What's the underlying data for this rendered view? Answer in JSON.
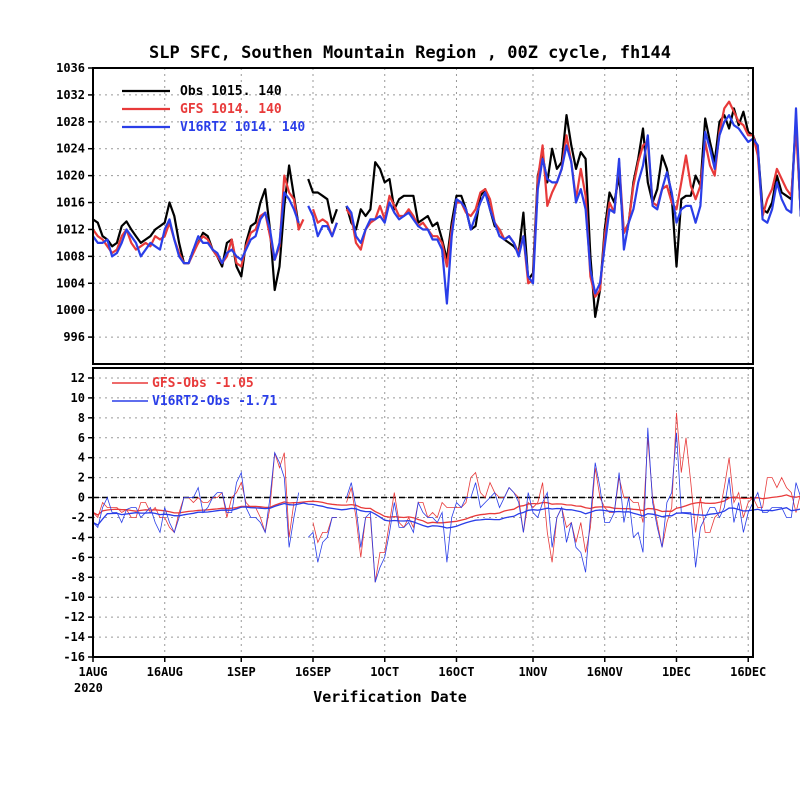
{
  "chart_data": [
    {
      "type": "line",
      "title": "SLP SFC, Southen Mountain Region , 00Z cycle, fh144",
      "xlabel": "Verification Date",
      "x_tick_labels": [
        "1AUG",
        "16AUG",
        "1SEP",
        "16SEP",
        "1OCT",
        "16OCT",
        "1NOV",
        "16NOV",
        "1DEC",
        "16DEC"
      ],
      "x_tick_offsets_days": [
        0,
        15,
        31,
        46,
        61,
        76,
        92,
        107,
        122,
        137
      ],
      "x_year_label": "2020",
      "x_range_days": [
        0,
        138
      ],
      "ylim": [
        992,
        1036
      ],
      "y_ticks": [
        996,
        1000,
        1004,
        1008,
        1012,
        1016,
        1020,
        1024,
        1028,
        1032,
        1036
      ],
      "grid": true,
      "legend_position": "top-left",
      "colors": {
        "obs": "#000000",
        "gfs": "#e83a3a",
        "v16": "#2a3ee8"
      },
      "legend": [
        {
          "name": "Obs",
          "mean": "1015.",
          "count": "140",
          "color": "#000000"
        },
        {
          "name": "GFS",
          "mean": "1014.",
          "count": "140",
          "color": "#e83a3a"
        },
        {
          "name": "V16RT2",
          "mean": "1014.",
          "count": "140",
          "color": "#2a3ee8"
        }
      ],
      "series": [
        {
          "name": "Obs",
          "key": "obs",
          "values": [
            1013.5,
            1013,
            1011,
            1010.5,
            1009.5,
            1010,
            1012.5,
            1013.2,
            1012,
            1011,
            1010,
            1010.5,
            1011,
            1012,
            1012.5,
            1013,
            1016,
            1014,
            1010,
            1007,
            1007,
            1009,
            1010,
            1011.5,
            1011,
            1009,
            1008,
            1006.5,
            1010,
            1010.5,
            1006.5,
            1005,
            1010,
            1012.5,
            1013,
            1016,
            1018,
            1012,
            1003,
            1006.5,
            1015.5,
            1021.5,
            1017,
            1012.5,
            null,
            1019.5,
            1017.5,
            1017.5,
            1017,
            1016.5,
            1013,
            1015,
            null,
            1015.5,
            1013,
            1012,
            1015,
            1014,
            1015,
            1022,
            1021,
            1019,
            1019.5,
            1015,
            1016.5,
            1017,
            1017,
            1017,
            1013,
            1013.5,
            1014,
            1012.5,
            1013,
            1010.5,
            1007.5,
            1013,
            1017,
            1017,
            1015,
            1012,
            1012.5,
            1017,
            1018,
            1015,
            1012.5,
            1012,
            1010.5,
            1010,
            1009.5,
            1008.5,
            1014.5,
            1004.5,
            1005.5,
            1020,
            1023,
            1019,
            1024,
            1021,
            1022,
            1029,
            1024.5,
            1021,
            1023.5,
            1022.5,
            1008,
            999,
            1003,
            1012,
            1017.5,
            1016,
            1020,
            1011.5,
            1013,
            1019,
            1022.5,
            1027,
            1019,
            1016,
            1018,
            1023,
            1021,
            1017,
            1006.5,
            1016.5,
            1017,
            1017,
            1020,
            1018.5,
            1028.5,
            1025,
            1022,
            1028,
            1029,
            1027,
            1030,
            1027.5,
            1029.5,
            1026.5,
            1026,
            1024,
            1015,
            1014.5,
            1016,
            1020,
            1017.5,
            1017,
            1016.5,
            1028.5,
            1014,
            1023,
            1025.5,
            1018,
            1017,
            1027.5
          ]
        },
        {
          "name": "GFS",
          "key": "gfs",
          "values": [
            1012,
            1011,
            1010.5,
            1009.5,
            1008.5,
            1009,
            1011,
            1012,
            1010,
            1009,
            1009.5,
            1010,
            1009.5,
            1011,
            1010.5,
            1011,
            1013,
            1010.5,
            1008.5,
            1007,
            1007,
            1008.5,
            1010,
            1011,
            1010.5,
            1009,
            1008,
            1007,
            1008,
            1010.5,
            1007,
            1006.5,
            1009.5,
            1011.5,
            1012,
            1014,
            1014.5,
            1011,
            1007.5,
            1009.5,
            1020,
            1017.5,
            1016.5,
            1012,
            1013.5,
            null,
            1015,
            1013,
            1013.5,
            1013,
            1011,
            1013,
            null,
            1015,
            1014,
            1010,
            1009,
            1012,
            1013,
            1013.5,
            1015.5,
            1013.5,
            1017,
            1015.5,
            1014,
            1014,
            1015,
            1014,
            1012.5,
            1013,
            1012,
            1011,
            1011,
            1010,
            1006.5,
            1012,
            1016,
            1016,
            1014.5,
            1014,
            1015,
            1017.5,
            1018,
            1016.5,
            1013,
            1012,
            1010.5,
            1011,
            1010,
            1008.5,
            1011,
            1004,
            1004.5,
            1019.5,
            1024.5,
            1015.5,
            1017.5,
            1019,
            1021,
            1026,
            1022,
            1016.5,
            1021,
            1017,
            1005,
            1002,
            1003,
            1011,
            1016,
            1014.5,
            1022,
            1011.5,
            1013,
            1018.5,
            1022,
            1024.5,
            1025,
            1016,
            1015.5,
            1018,
            1018.5,
            1016,
            1015,
            1019,
            1023,
            1018.5,
            1016.5,
            1018.5,
            1025,
            1021.5,
            1020,
            1026.5,
            1030,
            1031,
            1029.5,
            1028,
            1027.5,
            1026,
            1026,
            1023,
            1014,
            1016.5,
            1018,
            1021,
            1019.5,
            1018,
            1017,
            1027,
            1014.5,
            1027,
            1021.5,
            1017.5,
            1017,
            1027.5
          ]
        },
        {
          "name": "V16RT2",
          "key": "v16",
          "values": [
            1011,
            1010,
            1010,
            1010.5,
            1008,
            1008.5,
            1010,
            1012,
            1011,
            1010,
            1008,
            1009,
            1010,
            1009.5,
            1009,
            1012,
            1013.5,
            1010.5,
            1008,
            1007,
            1007,
            1009,
            1011,
            1010,
            1010,
            1009,
            1008.5,
            1007,
            1008.5,
            1009,
            1008,
            1007.5,
            1009,
            1010.5,
            1011,
            1013.5,
            1014.5,
            1012,
            1007.5,
            1010,
            1017.5,
            1016.5,
            1015,
            1013,
            null,
            1015.5,
            1014,
            1011,
            1012.5,
            1012.5,
            1011,
            1013,
            null,
            1015.5,
            1014.5,
            1011,
            1010,
            1012,
            1013.5,
            1013.5,
            1014,
            1013,
            1016,
            1014.5,
            1013.5,
            1014,
            1014.5,
            1013.5,
            1012.5,
            1012,
            1012,
            1010.5,
            1010.5,
            1009,
            1001,
            1011,
            1016.5,
            1016,
            1015,
            1012,
            1014,
            1016,
            1017.5,
            1015,
            1013,
            1011,
            1010.5,
            1011,
            1010,
            1008,
            1011,
            1005,
            1004,
            1018,
            1022.5,
            1019.5,
            1019,
            1019,
            1021,
            1024.5,
            1022,
            1016,
            1018,
            1015,
            1006,
            1002.5,
            1004,
            1009.5,
            1015,
            1014.5,
            1022.5,
            1009,
            1013,
            1015,
            1019,
            1021.5,
            1026,
            1015.5,
            1015,
            1018,
            1020.5,
            1017.5,
            1013,
            1015,
            1015.5,
            1015.5,
            1013,
            1015.5,
            1026.5,
            1024,
            1021,
            1026,
            1028,
            1029,
            1027.5,
            1027,
            1026,
            1025,
            1025.5,
            1024.5,
            1013.5,
            1013,
            1015,
            1019,
            1016.5,
            1015,
            1014.5,
            1030,
            1014,
            1022,
            1021.5,
            1016,
            1016.5,
            1026.5
          ]
        }
      ]
    },
    {
      "type": "line",
      "ylim": [
        -16,
        13
      ],
      "y_ticks": [
        -16,
        -14,
        -12,
        -10,
        -8,
        -6,
        -4,
        -2,
        0,
        2,
        4,
        6,
        8,
        10,
        12
      ],
      "grid": true,
      "zero_line": 0,
      "legend_position": "top-left",
      "legend": [
        {
          "name": "GFS-Obs",
          "mean": "-1.05",
          "color": "#e83a3a"
        },
        {
          "name": "V16RT2-Obs",
          "mean": "-1.71",
          "color": "#2a3ee8"
        }
      ],
      "series": [
        {
          "name": "GFS-Obs",
          "key": "gfs_diff",
          "derived_from": [
            "gfs",
            "obs"
          ],
          "color": "#e83a3a",
          "running_mean_window": 30
        },
        {
          "name": "V16RT2-Obs",
          "key": "v16_diff",
          "derived_from": [
            "v16",
            "obs"
          ],
          "color": "#2a3ee8",
          "running_mean_window": 30
        }
      ]
    }
  ]
}
